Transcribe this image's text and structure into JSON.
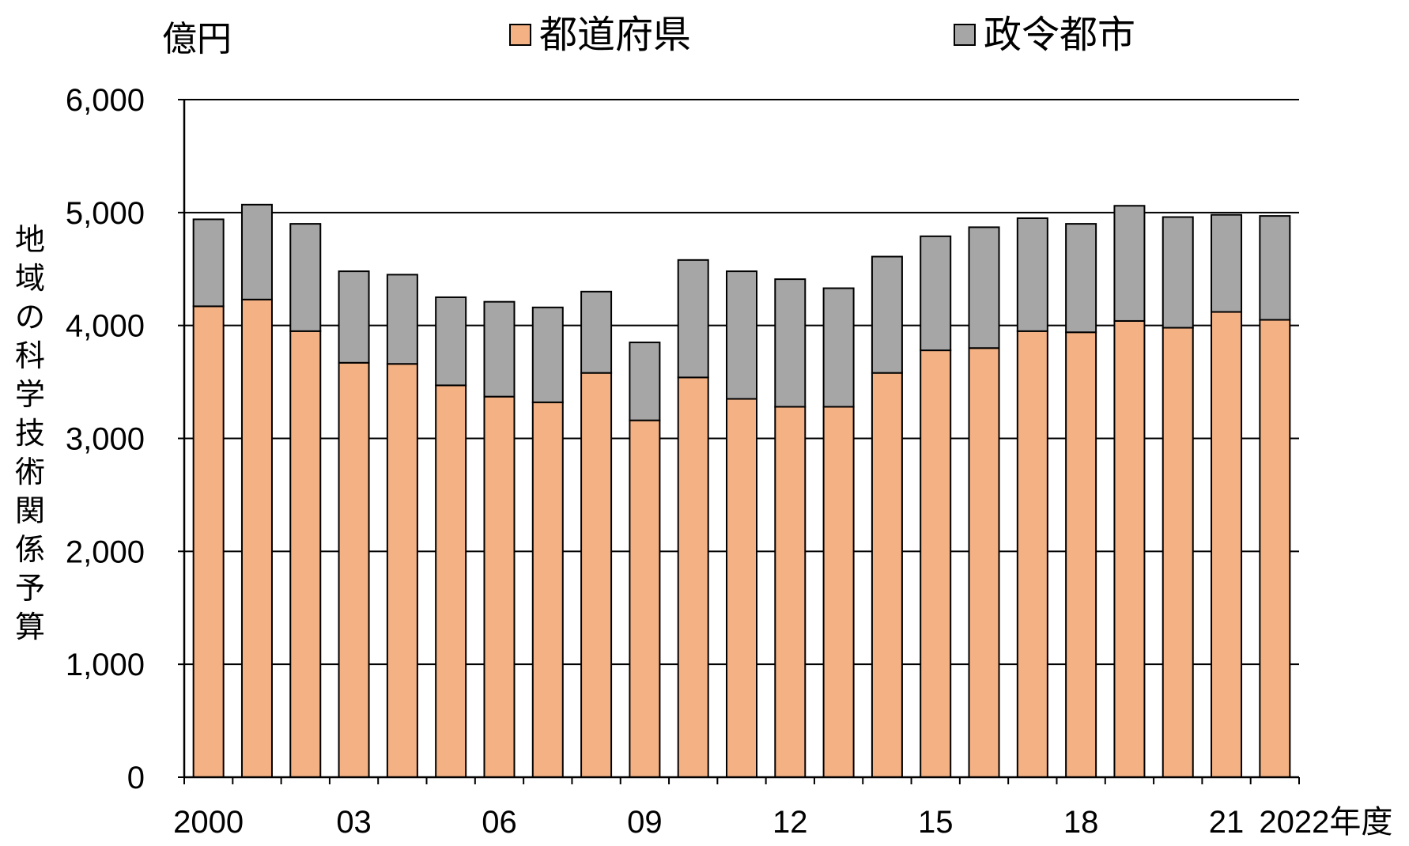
{
  "chart_data": {
    "type": "bar",
    "stacked": true,
    "unit_label": "億円",
    "ylabel": "地域の科学技術関係予算",
    "xlabel_suffix": "年度",
    "ylim": [
      0,
      6000
    ],
    "yticks": [
      0,
      1000,
      2000,
      3000,
      4000,
      5000,
      6000
    ],
    "ytick_labels": [
      "0",
      "1,000",
      "2,000",
      "3,000",
      "4,000",
      "5,000",
      "6,000"
    ],
    "grid": true,
    "legend_position": "top",
    "categories": [
      "2000",
      "2001",
      "2002",
      "2003",
      "2004",
      "2005",
      "2006",
      "2007",
      "2008",
      "2009",
      "2010",
      "2011",
      "2012",
      "2013",
      "2014",
      "2015",
      "2016",
      "2017",
      "2018",
      "2019",
      "2020",
      "2021",
      "2022"
    ],
    "tick_labels": [
      "2000",
      "",
      "",
      "03",
      "",
      "",
      "06",
      "",
      "",
      "09",
      "",
      "",
      "12",
      "",
      "",
      "15",
      "",
      "",
      "18",
      "",
      "",
      "21",
      "2022年度"
    ],
    "series": [
      {
        "name": "都道府県",
        "color": "#F4B183",
        "values": [
          4170,
          4230,
          3950,
          3670,
          3660,
          3470,
          3370,
          3320,
          3580,
          3160,
          3540,
          3350,
          3280,
          3280,
          3580,
          3780,
          3800,
          3950,
          3940,
          4040,
          3980,
          4120,
          4050
        ]
      },
      {
        "name": "政令都市",
        "color": "#A6A6A6",
        "values": [
          770,
          840,
          950,
          810,
          790,
          780,
          840,
          840,
          720,
          690,
          1040,
          1130,
          1130,
          1050,
          1030,
          1010,
          1070,
          1000,
          960,
          1020,
          980,
          860,
          920
        ]
      }
    ]
  }
}
